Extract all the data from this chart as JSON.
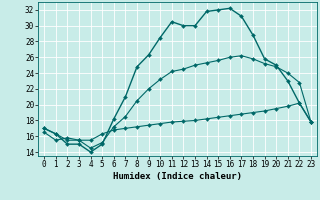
{
  "title": "",
  "xlabel": "Humidex (Indice chaleur)",
  "ylabel": "",
  "bg_color": "#c8ece8",
  "line_color": "#006868",
  "grid_color": "#ffffff",
  "ylim": [
    13.5,
    33
  ],
  "xlim": [
    -0.5,
    23.5
  ],
  "yticks": [
    14,
    16,
    18,
    20,
    22,
    24,
    26,
    28,
    30,
    32
  ],
  "xticks": [
    0,
    1,
    2,
    3,
    4,
    5,
    6,
    7,
    8,
    9,
    10,
    11,
    12,
    13,
    14,
    15,
    16,
    17,
    18,
    19,
    20,
    21,
    22,
    23
  ],
  "line1_x": [
    0,
    1,
    2,
    3,
    4,
    5,
    6,
    7,
    8,
    9,
    10,
    11,
    12,
    13,
    14,
    15,
    16,
    17,
    18,
    19,
    20,
    21,
    22,
    23
  ],
  "line1_y": [
    17.0,
    16.3,
    15.0,
    15.0,
    14.0,
    15.0,
    18.2,
    21.0,
    24.8,
    26.3,
    28.5,
    30.5,
    30.0,
    30.0,
    31.8,
    32.0,
    32.2,
    31.2,
    28.8,
    25.8,
    25.0,
    23.0,
    20.2,
    17.8
  ],
  "line2_x": [
    0,
    1,
    2,
    3,
    4,
    5,
    6,
    7,
    8,
    9,
    10,
    11,
    12,
    13,
    14,
    15,
    16,
    17,
    18,
    19,
    20,
    21,
    22,
    23
  ],
  "line2_y": [
    16.5,
    15.5,
    15.8,
    15.5,
    15.5,
    16.3,
    16.8,
    17.0,
    17.2,
    17.4,
    17.6,
    17.8,
    17.9,
    18.0,
    18.2,
    18.4,
    18.6,
    18.8,
    19.0,
    19.2,
    19.5,
    19.8,
    20.2,
    17.8
  ],
  "line3_x": [
    0,
    1,
    2,
    3,
    4,
    5,
    6,
    7,
    8,
    9,
    10,
    11,
    12,
    13,
    14,
    15,
    16,
    17,
    18,
    19,
    20,
    21,
    22,
    23
  ],
  "line3_y": [
    17.0,
    16.3,
    15.5,
    15.5,
    14.5,
    15.2,
    17.2,
    18.5,
    20.5,
    22.0,
    23.2,
    24.2,
    24.5,
    25.0,
    25.3,
    25.6,
    26.0,
    26.2,
    25.8,
    25.2,
    24.8,
    24.0,
    22.8,
    17.8
  ],
  "tick_fontsize": 5.5,
  "xlabel_fontsize": 6.5,
  "marker_size": 2.0,
  "linewidth1": 1.0,
  "linewidth2": 0.8,
  "linewidth3": 0.8
}
